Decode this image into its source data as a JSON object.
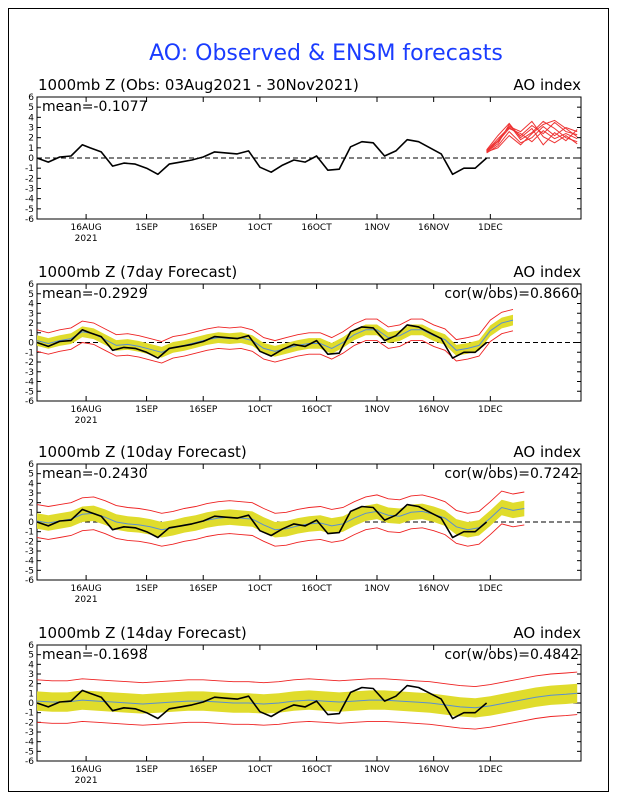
{
  "title": "AO: Observed & ENSM forecasts",
  "colors": {
    "title": "#1a3cff",
    "observed": "#000000",
    "ensemble_member": "#ee3333",
    "spread_band": "#e0dc2c",
    "envelope": "#ee2222",
    "ens_mean": "#5a8fd0",
    "zero_line": "#000000"
  },
  "chart_data": [
    {
      "type": "line",
      "panel_title": "1000mb Z (Obs: 03Aug2021 - 30Nov2021)",
      "right_label": "AO index",
      "stat_left": "mean=-0.1077",
      "stat_right": "",
      "ylim": [
        -6,
        6
      ],
      "yticks": [
        "6",
        "5",
        "4",
        "3",
        "2",
        "1",
        "0",
        "-1",
        "-2",
        "-3",
        "-4",
        "-5",
        "-6"
      ],
      "xlim": [
        0,
        144
      ],
      "xtick_positions": [
        13,
        29,
        44,
        59,
        74,
        90,
        105,
        120
      ],
      "xtick_labels": [
        "16AUG",
        "1SEP",
        "16SEP",
        "1OCT",
        "16OCT",
        "1NOV",
        "16NOV",
        "1DEC"
      ],
      "year_label": "2021",
      "observed": {
        "x": [
          0,
          3,
          6,
          9,
          12,
          14,
          17,
          20,
          23,
          26,
          29,
          32,
          35,
          38,
          41,
          44,
          47,
          50,
          53,
          56,
          59,
          62,
          65,
          68,
          71,
          74,
          77,
          80,
          83,
          86,
          89,
          92,
          95,
          98,
          101,
          104,
          107,
          110,
          113,
          116,
          119
        ],
        "y": [
          0,
          -0.4,
          0.1,
          0.2,
          1.3,
          1.0,
          0.6,
          -0.8,
          -0.5,
          -0.6,
          -1.0,
          -1.6,
          -0.6,
          -0.4,
          -0.2,
          0.1,
          0.6,
          0.5,
          0.4,
          0.7,
          -0.9,
          -1.4,
          -0.7,
          -0.2,
          -0.4,
          0.2,
          -1.2,
          -1.1,
          1.1,
          1.6,
          1.5,
          0.2,
          0.7,
          1.8,
          1.6,
          1.0,
          0.4,
          -1.6,
          -1.0,
          -1.0,
          0.0
        ]
      },
      "forecast_members": [
        {
          "x": [
            119,
            122,
            125,
            128,
            131,
            134,
            137,
            140,
            143
          ],
          "y": [
            0.6,
            1.4,
            3.3,
            1.8,
            2.5,
            3.6,
            2.9,
            2.0,
            1.6
          ]
        },
        {
          "x": [
            119,
            122,
            125,
            128,
            131,
            134,
            137,
            140,
            143
          ],
          "y": [
            0.7,
            1.9,
            3.0,
            2.2,
            3.2,
            2.4,
            3.5,
            2.6,
            2.3
          ]
        },
        {
          "x": [
            119,
            122,
            125,
            128,
            131,
            134,
            137,
            140,
            143
          ],
          "y": [
            0.5,
            1.2,
            2.6,
            1.5,
            2.0,
            3.1,
            2.2,
            3.0,
            2.6
          ]
        },
        {
          "x": [
            119,
            122,
            125,
            128,
            131,
            134,
            137,
            140,
            143
          ],
          "y": [
            0.6,
            1.6,
            2.9,
            2.4,
            1.6,
            2.7,
            1.9,
            2.4,
            1.9
          ]
        },
        {
          "x": [
            119,
            122,
            125,
            128,
            131,
            134,
            137,
            140,
            143
          ],
          "y": [
            0.8,
            2.2,
            3.4,
            2.0,
            2.9,
            1.3,
            2.5,
            1.7,
            2.8
          ]
        },
        {
          "x": [
            119,
            122,
            125,
            128,
            131,
            134,
            137,
            140,
            143
          ],
          "y": [
            0.6,
            1.0,
            2.2,
            1.3,
            2.4,
            3.3,
            3.7,
            2.9,
            2.1
          ]
        },
        {
          "x": [
            119,
            122,
            125,
            128,
            131,
            134,
            137,
            140,
            143
          ],
          "y": [
            0.7,
            1.7,
            3.1,
            2.6,
            3.6,
            2.1,
            1.5,
            2.2,
            1.4
          ]
        }
      ]
    },
    {
      "type": "line",
      "panel_title": "1000mb Z (7day Forecast)",
      "right_label": "AO index",
      "stat_left": "mean=-0.2929",
      "stat_right": "cor(w/obs)=0.8660",
      "ylim": [
        -6,
        6
      ],
      "yticks": [
        "6",
        "5",
        "4",
        "3",
        "2",
        "1",
        "0",
        "-1",
        "-2",
        "-3",
        "-4",
        "-5",
        "-6"
      ],
      "xlim": [
        0,
        144
      ],
      "xtick_positions": [
        13,
        29,
        44,
        59,
        74,
        90,
        105,
        120
      ],
      "xtick_labels": [
        "16AUG",
        "1SEP",
        "16SEP",
        "1OCT",
        "16OCT",
        "1NOV",
        "16NOV",
        "1DEC"
      ],
      "year_label": "2021",
      "band_halfwidth": 0.55,
      "envelope_offset": 1.1,
      "observed": {
        "x": [
          0,
          3,
          6,
          9,
          12,
          14,
          17,
          20,
          23,
          26,
          29,
          32,
          35,
          38,
          41,
          44,
          47,
          50,
          53,
          56,
          59,
          62,
          65,
          68,
          71,
          74,
          77,
          80,
          83,
          86,
          89,
          92,
          95,
          98,
          101,
          104,
          107,
          110,
          113,
          116,
          119
        ],
        "y": [
          0,
          -0.4,
          0.1,
          0.2,
          1.3,
          1.0,
          0.6,
          -0.8,
          -0.5,
          -0.6,
          -1.0,
          -1.6,
          -0.6,
          -0.4,
          -0.2,
          0.1,
          0.6,
          0.5,
          0.4,
          0.7,
          -0.9,
          -1.4,
          -0.7,
          -0.2,
          -0.4,
          0.2,
          -1.2,
          -1.1,
          1.1,
          1.6,
          1.5,
          0.2,
          0.7,
          1.8,
          1.6,
          1.0,
          0.4,
          -1.6,
          -1.0,
          -1.0,
          0.0
        ]
      },
      "forecast_mean": {
        "x": [
          0,
          3,
          6,
          9,
          12,
          15,
          18,
          21,
          24,
          27,
          30,
          33,
          36,
          39,
          42,
          45,
          48,
          51,
          54,
          57,
          60,
          63,
          66,
          69,
          72,
          75,
          78,
          81,
          84,
          87,
          90,
          93,
          96,
          99,
          102,
          105,
          108,
          111,
          114,
          117,
          120,
          123,
          126
        ],
        "y": [
          0.2,
          -0.1,
          0.2,
          0.4,
          1.1,
          0.9,
          0.3,
          -0.3,
          -0.2,
          -0.4,
          -0.7,
          -1.0,
          -0.5,
          -0.3,
          0.0,
          0.3,
          0.5,
          0.4,
          0.5,
          0.2,
          -0.6,
          -0.9,
          -0.6,
          -0.3,
          -0.1,
          -0.1,
          -0.6,
          0.0,
          0.8,
          1.3,
          1.3,
          0.5,
          0.7,
          1.3,
          1.3,
          0.7,
          0.3,
          -0.8,
          -0.6,
          -0.3,
          1.2,
          2.0,
          2.3
        ]
      }
    },
    {
      "type": "line",
      "panel_title": "1000mb Z (10day Forecast)",
      "right_label": "AO index",
      "stat_left": "mean=-0.2430",
      "stat_right": "cor(w/obs)=0.7242",
      "ylim": [
        -6,
        6
      ],
      "yticks": [
        "6",
        "5",
        "4",
        "3",
        "2",
        "1",
        "0",
        "-1",
        "-2",
        "-3",
        "-4",
        "-5",
        "-6"
      ],
      "xlim": [
        0,
        144
      ],
      "xtick_positions": [
        13,
        29,
        44,
        59,
        74,
        90,
        105,
        120
      ],
      "xtick_labels": [
        "16AUG",
        "1SEP",
        "16SEP",
        "1OCT",
        "16OCT",
        "1NOV",
        "16NOV",
        "1DEC"
      ],
      "year_label": "2021",
      "band_halfwidth": 0.8,
      "envelope_offset": 1.7,
      "observed": {
        "x": [
          0,
          3,
          6,
          9,
          12,
          14,
          17,
          20,
          23,
          26,
          29,
          32,
          35,
          38,
          41,
          44,
          47,
          50,
          53,
          56,
          59,
          62,
          65,
          68,
          71,
          74,
          77,
          80,
          83,
          86,
          89,
          92,
          95,
          98,
          101,
          104,
          107,
          110,
          113,
          116,
          119
        ],
        "y": [
          0,
          -0.4,
          0.1,
          0.2,
          1.3,
          1.0,
          0.6,
          -0.8,
          -0.5,
          -0.6,
          -1.0,
          -1.6,
          -0.6,
          -0.4,
          -0.2,
          0.1,
          0.6,
          0.5,
          0.4,
          0.7,
          -0.9,
          -1.4,
          -0.7,
          -0.2,
          -0.4,
          0.2,
          -1.2,
          -1.1,
          1.1,
          1.6,
          1.5,
          0.2,
          0.7,
          1.8,
          1.6,
          1.0,
          0.4,
          -1.6,
          -1.0,
          -1.0,
          0.0
        ]
      },
      "forecast_mean": {
        "x": [
          0,
          3,
          6,
          9,
          12,
          15,
          18,
          21,
          24,
          27,
          30,
          33,
          36,
          39,
          42,
          45,
          48,
          51,
          54,
          57,
          60,
          63,
          66,
          69,
          72,
          75,
          78,
          81,
          84,
          87,
          90,
          93,
          96,
          99,
          102,
          105,
          108,
          111,
          114,
          117,
          120,
          123,
          126,
          129
        ],
        "y": [
          0.1,
          -0.1,
          0.1,
          0.3,
          0.8,
          0.9,
          0.5,
          0.0,
          -0.2,
          -0.3,
          -0.5,
          -0.8,
          -0.6,
          -0.3,
          -0.1,
          0.2,
          0.4,
          0.5,
          0.4,
          0.3,
          -0.3,
          -0.8,
          -0.7,
          -0.4,
          -0.2,
          -0.1,
          -0.4,
          -0.2,
          0.4,
          0.9,
          1.1,
          0.7,
          0.6,
          1.0,
          1.1,
          0.8,
          0.4,
          -0.5,
          -0.8,
          -0.6,
          0.4,
          1.5,
          1.2,
          1.4
        ]
      }
    },
    {
      "type": "line",
      "panel_title": "1000mb Z (14day Forecast)",
      "right_label": "AO index",
      "stat_left": "mean=-0.1698",
      "stat_right": "cor(w/obs)=0.4842",
      "ylim": [
        -6,
        6
      ],
      "yticks": [
        "6",
        "5",
        "4",
        "3",
        "2",
        "1",
        "0",
        "-1",
        "-2",
        "-3",
        "-4",
        "-5",
        "-6"
      ],
      "xlim": [
        0,
        144
      ],
      "xtick_positions": [
        13,
        29,
        44,
        59,
        74,
        90,
        105,
        120
      ],
      "xtick_labels": [
        "16AUG",
        "1SEP",
        "16SEP",
        "1OCT",
        "16OCT",
        "1NOV",
        "16NOV",
        "1DEC"
      ],
      "year_label": "2021",
      "band_halfwidth": 1.0,
      "envelope_offset": 2.2,
      "observed": {
        "x": [
          0,
          3,
          6,
          9,
          12,
          14,
          17,
          20,
          23,
          26,
          29,
          32,
          35,
          38,
          41,
          44,
          47,
          50,
          53,
          56,
          59,
          62,
          65,
          68,
          71,
          74,
          77,
          80,
          83,
          86,
          89,
          92,
          95,
          98,
          101,
          104,
          107,
          110,
          113,
          116,
          119
        ],
        "y": [
          0,
          -0.4,
          0.1,
          0.2,
          1.3,
          1.0,
          0.6,
          -0.8,
          -0.5,
          -0.6,
          -1.0,
          -1.6,
          -0.6,
          -0.4,
          -0.2,
          0.1,
          0.6,
          0.5,
          0.4,
          0.7,
          -0.9,
          -1.4,
          -0.7,
          -0.2,
          -0.4,
          0.2,
          -1.2,
          -1.1,
          1.1,
          1.6,
          1.5,
          0.2,
          0.7,
          1.8,
          1.6,
          1.0,
          0.4,
          -1.6,
          -1.0,
          -1.0,
          0.0
        ]
      },
      "forecast_mean": {
        "x": [
          0,
          4,
          8,
          12,
          16,
          20,
          24,
          28,
          32,
          36,
          40,
          44,
          48,
          52,
          56,
          60,
          64,
          68,
          72,
          76,
          80,
          84,
          88,
          92,
          96,
          100,
          104,
          108,
          112,
          116,
          120,
          124,
          128,
          132,
          136,
          140,
          143
        ],
        "y": [
          0.2,
          0.1,
          0.1,
          0.3,
          0.2,
          0.1,
          0.0,
          -0.1,
          0.0,
          0.1,
          0.2,
          0.2,
          0.1,
          0.0,
          0.0,
          -0.1,
          0.0,
          0.2,
          0.3,
          0.2,
          0.1,
          0.2,
          0.3,
          0.3,
          0.2,
          0.1,
          0.0,
          -0.2,
          -0.4,
          -0.5,
          -0.3,
          0.0,
          0.3,
          0.6,
          0.8,
          0.9,
          1.0
        ]
      }
    }
  ]
}
